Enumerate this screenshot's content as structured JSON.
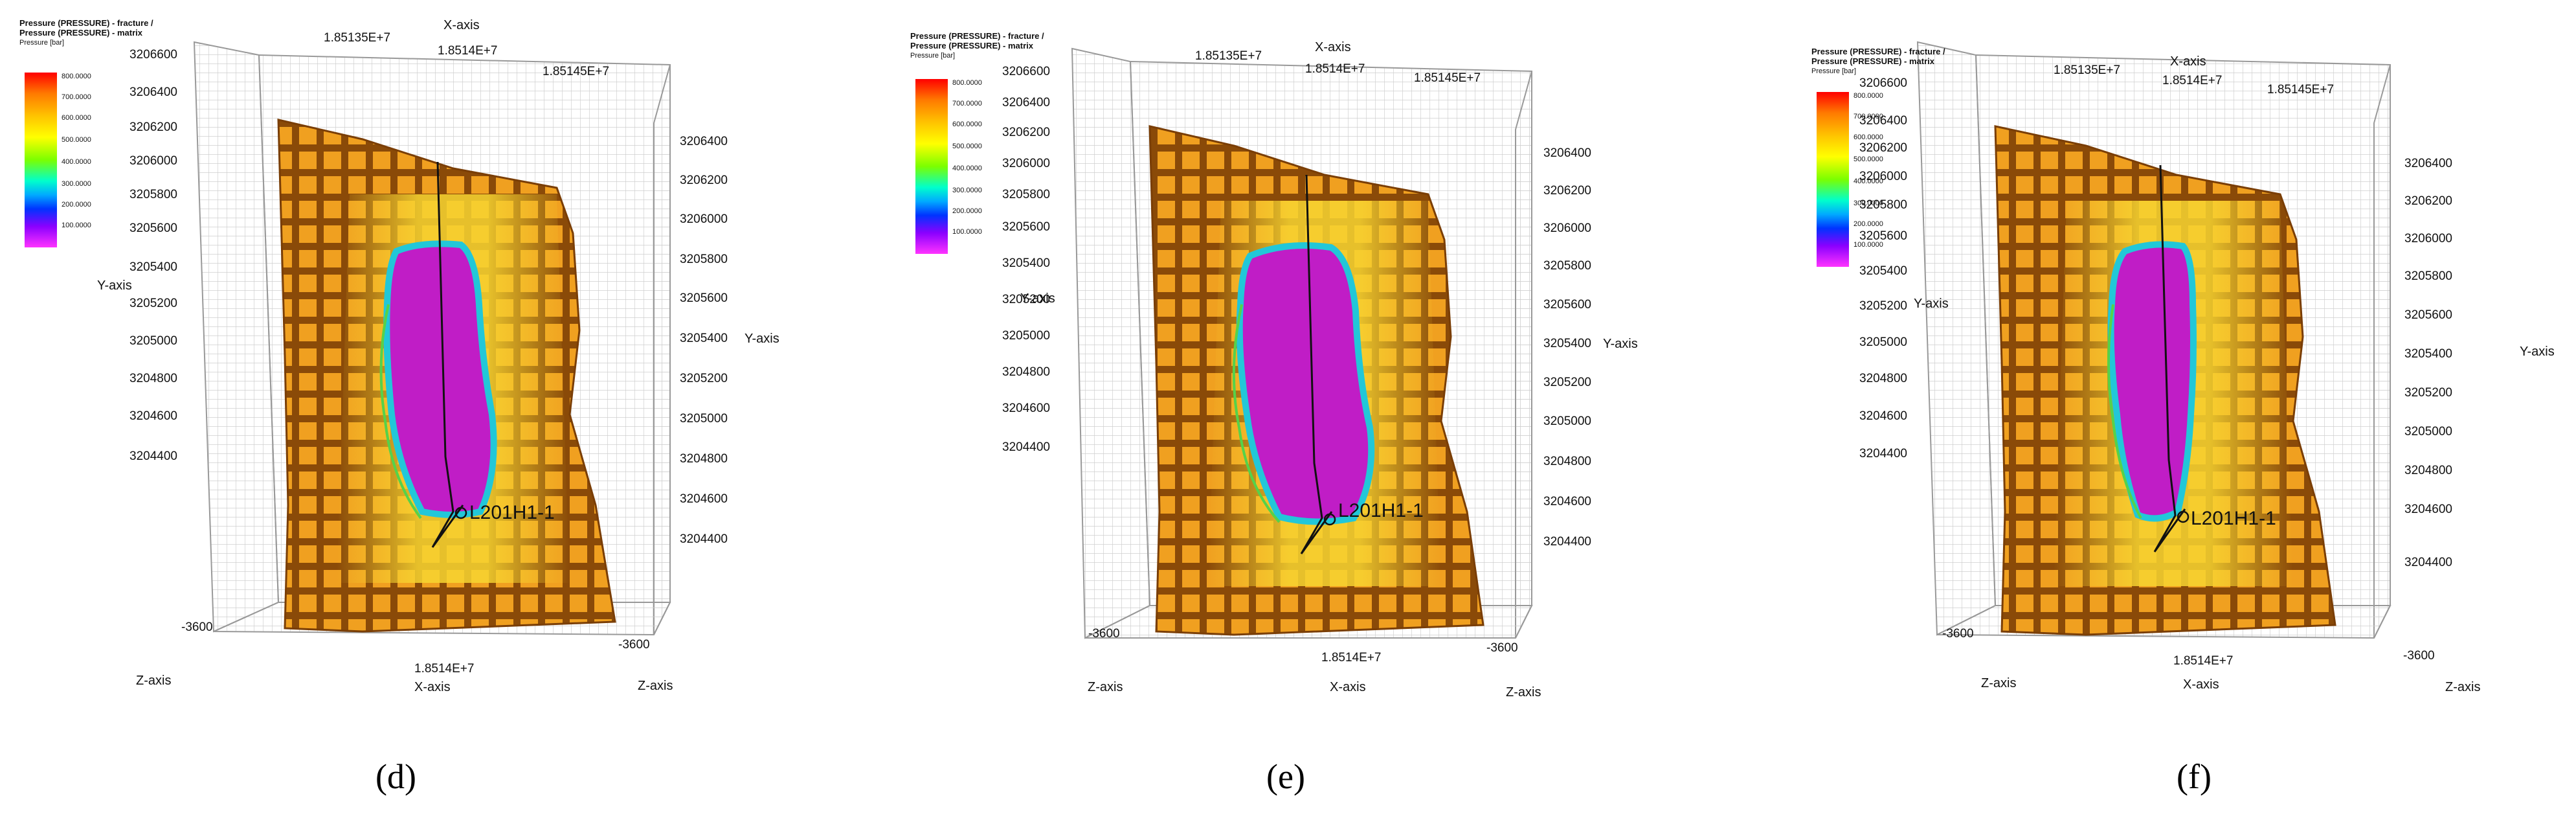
{
  "legend": {
    "title_line1": "Pressure (PRESSURE) - fracture /",
    "title_line2": "Pressure (PRESSURE) - matrix",
    "unit": "Pressure [bar]",
    "ticks": [
      "800.0000",
      "700.0000",
      "600.0000",
      "500.0000",
      "400.0000",
      "300.0000",
      "200.0000",
      "100.0000"
    ]
  },
  "axes": {
    "x_name": "X-axis",
    "y_name": "Y-axis",
    "z_name": "Z-axis",
    "x_top_ticks": [
      "1.85135E+7",
      "1.8514E+7",
      "1.85145E+7"
    ],
    "x_bottom_tick": "1.8514E+7",
    "y_left_ticks": [
      "3206600",
      "3206400",
      "3206200",
      "3206000",
      "3205800",
      "3205600",
      "3205400",
      "3205200",
      "3205000",
      "3204800",
      "3204600",
      "3204400"
    ],
    "y_right_ticks": [
      "3206400",
      "3206200",
      "3206000",
      "3205800",
      "3205600",
      "3205400",
      "3205200",
      "3205000",
      "3204800",
      "3204600",
      "3204400"
    ],
    "z_tick": "-3600"
  },
  "well_label": "L201H1-1",
  "panels": [
    {
      "caption": "(d)"
    },
    {
      "caption": "(e)"
    },
    {
      "caption": "(f)"
    }
  ],
  "colors": {
    "orange": "#f0a020",
    "yellow": "#f7d531",
    "magenta": "#c01dc6",
    "cyan": "#22c7d8",
    "green": "#55d24a"
  }
}
